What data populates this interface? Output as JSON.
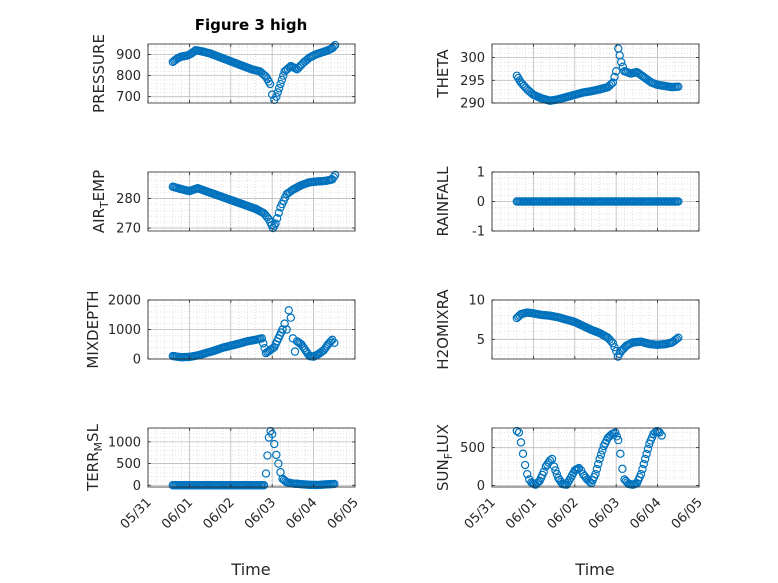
{
  "title": "Figure 3 high",
  "colors": {
    "marker": "#0072BD",
    "grid": "#cfcfcf",
    "axis": "#262626"
  },
  "xaxis": {
    "label": "Time",
    "ticks": [
      "05/31",
      "06/01",
      "06/02",
      "06/03",
      "06/04",
      "06/05"
    ],
    "range": [
      0,
      5
    ],
    "unit": "days after 05/31 00:00"
  },
  "chart_data": [
    {
      "type": "scatter",
      "ylabel": "PRESSURE",
      "ylabel_sub": "",
      "ylabel_tail": "",
      "ylim": [
        670,
        950
      ],
      "yticks": [
        {
          "v": 700,
          "t": "700"
        },
        {
          "v": 800,
          "t": "800"
        },
        {
          "v": 900,
          "t": "900"
        }
      ],
      "series": [
        {
          "x_key": "time",
          "keypoints": [
            [
              0.6,
              865
            ],
            [
              0.7,
              880
            ],
            [
              0.8,
              890
            ],
            [
              0.95,
              895
            ],
            [
              1.05,
              905
            ],
            [
              1.15,
              920
            ],
            [
              1.3,
              915
            ],
            [
              1.5,
              905
            ],
            [
              1.7,
              890
            ],
            [
              1.9,
              875
            ],
            [
              2.1,
              860
            ],
            [
              2.3,
              845
            ],
            [
              2.5,
              830
            ],
            [
              2.7,
              820
            ],
            [
              2.85,
              795
            ],
            [
              2.95,
              760
            ],
            [
              3.0,
              710
            ],
            [
              3.05,
              685
            ],
            [
              3.1,
              700
            ],
            [
              3.2,
              760
            ],
            [
              3.3,
              820
            ],
            [
              3.45,
              845
            ],
            [
              3.6,
              830
            ],
            [
              3.75,
              860
            ],
            [
              3.9,
              885
            ],
            [
              4.05,
              900
            ],
            [
              4.2,
              910
            ],
            [
              4.35,
              920
            ],
            [
              4.45,
              930
            ],
            [
              4.52,
              945
            ]
          ]
        }
      ]
    },
    {
      "type": "scatter",
      "ylabel": "THETA",
      "ylabel_sub": "",
      "ylabel_tail": "",
      "ylim": [
        290,
        303
      ],
      "yticks": [
        {
          "v": 290,
          "t": "290"
        },
        {
          "v": 295,
          "t": "295"
        },
        {
          "v": 300,
          "t": "300"
        }
      ],
      "series": [
        {
          "x_key": "time",
          "keypoints": [
            [
              0.6,
              296.0
            ],
            [
              0.7,
              294.5
            ],
            [
              0.85,
              293.0
            ],
            [
              1.0,
              291.8
            ],
            [
              1.2,
              291.0
            ],
            [
              1.4,
              290.5
            ],
            [
              1.6,
              290.8
            ],
            [
              1.8,
              291.3
            ],
            [
              2.0,
              291.8
            ],
            [
              2.2,
              292.3
            ],
            [
              2.4,
              292.6
            ],
            [
              2.6,
              293.0
            ],
            [
              2.8,
              293.5
            ],
            [
              2.92,
              294.5
            ],
            [
              3.0,
              297.0
            ],
            [
              3.05,
              302.0
            ],
            [
              3.12,
              299.0
            ],
            [
              3.2,
              297.0
            ],
            [
              3.35,
              296.5
            ],
            [
              3.5,
              296.8
            ],
            [
              3.7,
              295.5
            ],
            [
              3.85,
              294.5
            ],
            [
              4.0,
              294.0
            ],
            [
              4.2,
              293.7
            ],
            [
              4.35,
              293.5
            ],
            [
              4.5,
              293.6
            ]
          ]
        }
      ]
    },
    {
      "type": "scatter",
      "ylabel": "AIR",
      "ylabel_sub": "T",
      "ylabel_tail": "EMP",
      "ylim": [
        269,
        289
      ],
      "yticks": [
        {
          "v": 270,
          "t": "270"
        },
        {
          "v": 280,
          "t": "280"
        }
      ],
      "series": [
        {
          "x_key": "time",
          "keypoints": [
            [
              0.6,
              284.0
            ],
            [
              0.8,
              283.2
            ],
            [
              1.0,
              282.5
            ],
            [
              1.2,
              283.5
            ],
            [
              1.4,
              282.5
            ],
            [
              1.6,
              281.5
            ],
            [
              1.8,
              280.5
            ],
            [
              2.0,
              279.5
            ],
            [
              2.2,
              278.5
            ],
            [
              2.4,
              277.5
            ],
            [
              2.6,
              276.5
            ],
            [
              2.8,
              275.0
            ],
            [
              2.92,
              273.0
            ],
            [
              3.02,
              270.0
            ],
            [
              3.08,
              271.5
            ],
            [
              3.2,
              277.0
            ],
            [
              3.35,
              281.5
            ],
            [
              3.5,
              283.0
            ],
            [
              3.7,
              284.5
            ],
            [
              3.9,
              285.5
            ],
            [
              4.1,
              285.8
            ],
            [
              4.3,
              286.0
            ],
            [
              4.45,
              286.5
            ],
            [
              4.52,
              288.0
            ]
          ]
        }
      ]
    },
    {
      "type": "scatter",
      "ylabel": "RAINFALL",
      "ylabel_sub": "",
      "ylabel_tail": "",
      "ylim": [
        -1,
        1
      ],
      "yticks": [
        {
          "v": -1,
          "t": "-1"
        },
        {
          "v": 0,
          "t": "0"
        },
        {
          "v": 1,
          "t": "1"
        }
      ],
      "series": [
        {
          "x_key": "time",
          "keypoints": [
            [
              0.6,
              0
            ],
            [
              4.5,
              0
            ]
          ]
        }
      ]
    },
    {
      "type": "scatter",
      "ylabel": "MIXDEPTH",
      "ylabel_sub": "",
      "ylabel_tail": "",
      "ylim": [
        0,
        2000
      ],
      "yticks": [
        {
          "v": 0,
          "t": "0"
        },
        {
          "v": 1000,
          "t": "1000"
        },
        {
          "v": 2000,
          "t": "2000"
        }
      ],
      "series": [
        {
          "x_key": "time",
          "keypoints": [
            [
              0.6,
              100
            ],
            [
              0.8,
              60
            ],
            [
              1.0,
              70
            ],
            [
              1.2,
              120
            ],
            [
              1.4,
              200
            ],
            [
              1.6,
              280
            ],
            [
              1.8,
              380
            ],
            [
              2.0,
              450
            ],
            [
              2.2,
              520
            ],
            [
              2.4,
              600
            ],
            [
              2.6,
              650
            ],
            [
              2.75,
              700
            ],
            [
              2.85,
              200
            ],
            [
              2.95,
              300
            ],
            [
              3.05,
              400
            ],
            [
              3.15,
              700
            ],
            [
              3.25,
              1000
            ],
            [
              3.3,
              1200
            ],
            [
              3.35,
              1000
            ],
            [
              3.4,
              1650
            ],
            [
              3.45,
              1400
            ],
            [
              3.5,
              700
            ],
            [
              3.55,
              250
            ],
            [
              3.6,
              600
            ],
            [
              3.7,
              500
            ],
            [
              3.8,
              300
            ],
            [
              3.9,
              100
            ],
            [
              4.0,
              80
            ],
            [
              4.1,
              150
            ],
            [
              4.25,
              300
            ],
            [
              4.35,
              500
            ],
            [
              4.45,
              650
            ],
            [
              4.5,
              550
            ]
          ]
        }
      ]
    },
    {
      "type": "scatter",
      "ylabel": "H2OMIXRA",
      "ylabel_sub": "",
      "ylabel_tail": "",
      "ylim": [
        2.5,
        10
      ],
      "yticks": [
        {
          "v": 5,
          "t": "5"
        },
        {
          "v": 10,
          "t": "10"
        }
      ],
      "series": [
        {
          "x_key": "time",
          "keypoints": [
            [
              0.6,
              7.7
            ],
            [
              0.7,
              8.2
            ],
            [
              0.85,
              8.4
            ],
            [
              1.0,
              8.3
            ],
            [
              1.2,
              8.1
            ],
            [
              1.4,
              8.0
            ],
            [
              1.6,
              7.8
            ],
            [
              1.8,
              7.5
            ],
            [
              2.0,
              7.2
            ],
            [
              2.2,
              6.7
            ],
            [
              2.4,
              6.2
            ],
            [
              2.6,
              5.8
            ],
            [
              2.8,
              5.2
            ],
            [
              2.92,
              4.5
            ],
            [
              3.0,
              3.5
            ],
            [
              3.04,
              2.8
            ],
            [
              3.12,
              3.5
            ],
            [
              3.25,
              4.2
            ],
            [
              3.4,
              4.6
            ],
            [
              3.6,
              4.7
            ],
            [
              3.8,
              4.4
            ],
            [
              4.0,
              4.3
            ],
            [
              4.2,
              4.4
            ],
            [
              4.35,
              4.6
            ],
            [
              4.5,
              5.2
            ]
          ]
        }
      ]
    },
    {
      "type": "scatter",
      "ylabel": "TERR",
      "ylabel_sub": "M",
      "ylabel_tail": "SL",
      "ylim": [
        -40,
        1320
      ],
      "yticks": [
        {
          "v": 0,
          "t": "0"
        },
        {
          "v": 500,
          "t": "500"
        },
        {
          "v": 1000,
          "t": "1000"
        }
      ],
      "series": [
        {
          "x_key": "time",
          "keypoints": [
            [
              0.6,
              0
            ],
            [
              2.8,
              0
            ],
            [
              2.85,
              270
            ],
            [
              2.92,
              1100
            ],
            [
              2.96,
              1250
            ],
            [
              3.0,
              1180
            ],
            [
              3.05,
              950
            ],
            [
              3.1,
              700
            ],
            [
              3.15,
              500
            ],
            [
              3.2,
              300
            ],
            [
              3.25,
              150
            ],
            [
              3.35,
              70
            ],
            [
              3.5,
              40
            ],
            [
              3.7,
              25
            ],
            [
              3.9,
              10
            ],
            [
              4.1,
              5
            ],
            [
              4.3,
              20
            ],
            [
              4.5,
              30
            ]
          ]
        }
      ]
    },
    {
      "type": "scatter",
      "ylabel": "SUN",
      "ylabel_sub": "F",
      "ylabel_tail": "LUX",
      "ylim": [
        -20,
        760
      ],
      "yticks": [
        {
          "v": 0,
          "t": "0"
        },
        {
          "v": 500,
          "t": "500"
        }
      ],
      "series": [
        {
          "x_key": "time",
          "keypoints": [
            [
              0.6,
              720
            ],
            [
              0.65,
              700
            ],
            [
              0.7,
              570
            ],
            [
              0.75,
              420
            ],
            [
              0.8,
              270
            ],
            [
              0.85,
              150
            ],
            [
              0.9,
              80
            ],
            [
              0.95,
              40
            ],
            [
              1.05,
              10
            ],
            [
              1.15,
              60
            ],
            [
              1.25,
              180
            ],
            [
              1.3,
              250
            ],
            [
              1.4,
              330
            ],
            [
              1.45,
              350
            ],
            [
              1.5,
              250
            ],
            [
              1.6,
              100
            ],
            [
              1.7,
              20
            ],
            [
              1.8,
              10
            ],
            [
              1.9,
              100
            ],
            [
              2.0,
              200
            ],
            [
              2.1,
              230
            ],
            [
              2.15,
              200
            ],
            [
              2.2,
              150
            ],
            [
              2.3,
              80
            ],
            [
              2.4,
              30
            ],
            [
              2.5,
              150
            ],
            [
              2.6,
              350
            ],
            [
              2.7,
              520
            ],
            [
              2.8,
              630
            ],
            [
              2.9,
              680
            ],
            [
              2.98,
              700
            ],
            [
              3.05,
              600
            ],
            [
              3.1,
              420
            ],
            [
              3.15,
              220
            ],
            [
              3.2,
              80
            ],
            [
              3.3,
              20
            ],
            [
              3.4,
              10
            ],
            [
              3.5,
              30
            ],
            [
              3.6,
              150
            ],
            [
              3.7,
              350
            ],
            [
              3.8,
              550
            ],
            [
              3.9,
              680
            ],
            [
              3.98,
              720
            ],
            [
              4.05,
              700
            ],
            [
              4.1,
              660
            ]
          ]
        }
      ]
    }
  ]
}
